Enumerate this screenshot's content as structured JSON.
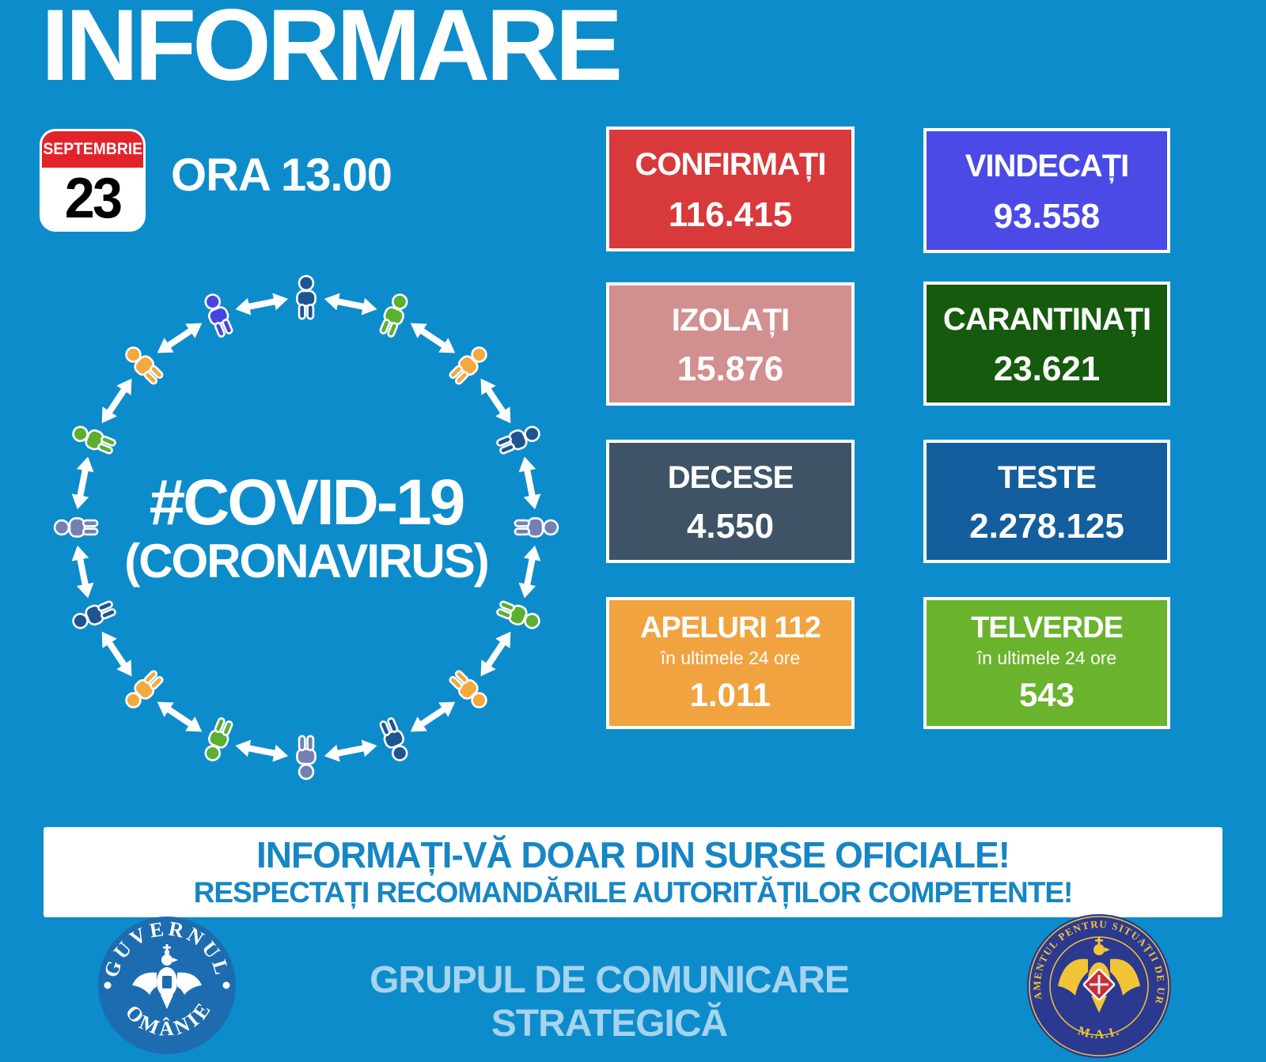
{
  "page": {
    "background": "#0D8CCB"
  },
  "header": {
    "title": "INFORMARE",
    "time": "ORA 13.00",
    "calendar": {
      "month": "SEPTEMBRIE",
      "day": "23",
      "header_color": "#E2242A"
    }
  },
  "diagram": {
    "hashtag": "#COVID-19",
    "subtitle": "(CORONAVIRUS)",
    "arrow_color": "#FFFFFF",
    "person_colors": [
      "#1D5492",
      "#5BB030",
      "#F3A93C",
      "#1D5492",
      "#7280B6",
      "#5BB030",
      "#F3A93C",
      "#1D5492",
      "#7280B6",
      "#5BB030",
      "#F3A93C",
      "#1D5492",
      "#7280B6",
      "#5BB030",
      "#F3A93C",
      "#4745E2"
    ]
  },
  "stats": [
    {
      "label": "CONFIRMAȚI",
      "value": "116.415",
      "bg": "#D8393B"
    },
    {
      "label": "VINDECAȚI",
      "value": "93.558",
      "bg": "#4B4AE6"
    },
    {
      "label": "IZOLAȚI",
      "value": "15.876",
      "bg": "#D28F8F"
    },
    {
      "label": "CARANTINAȚI",
      "value": "23.621",
      "bg": "#155A0D"
    },
    {
      "label": "DECESE",
      "value": "4.550",
      "bg": "#3E5366"
    },
    {
      "label": "TESTE",
      "value": "2.278.125",
      "bg": "#145E9E"
    },
    {
      "label": "APELURI 112",
      "sublabel": "în ultimele 24 ore",
      "value": "1.011",
      "bg": "#F0A33F"
    },
    {
      "label": "TELVERDE",
      "sublabel": "în ultimele 24 ore",
      "value": "543",
      "bg": "#6AB32D"
    }
  ],
  "banner": {
    "line1": "INFORMAȚI-VĂ DOAR DIN SURSE OFICIALE!",
    "line2": "RESPECTAȚI RECOMANDĂRILE AUTORITĂȚILOR COMPETENTE!",
    "text_color": "#1686C4"
  },
  "footer": {
    "center_text": "GRUPUL DE COMUNICARE STRATEGICĂ",
    "center_color": "#A6D3EE",
    "gov_seal": {
      "top": "GUVERNUL",
      "bottom": "ROMÂNIEI"
    },
    "dsu_seal": {
      "ring": "DEPARTAMENTUL PENTRU SITUAȚII DE URGENȚĂ",
      "bottom": "M.A.I."
    }
  }
}
